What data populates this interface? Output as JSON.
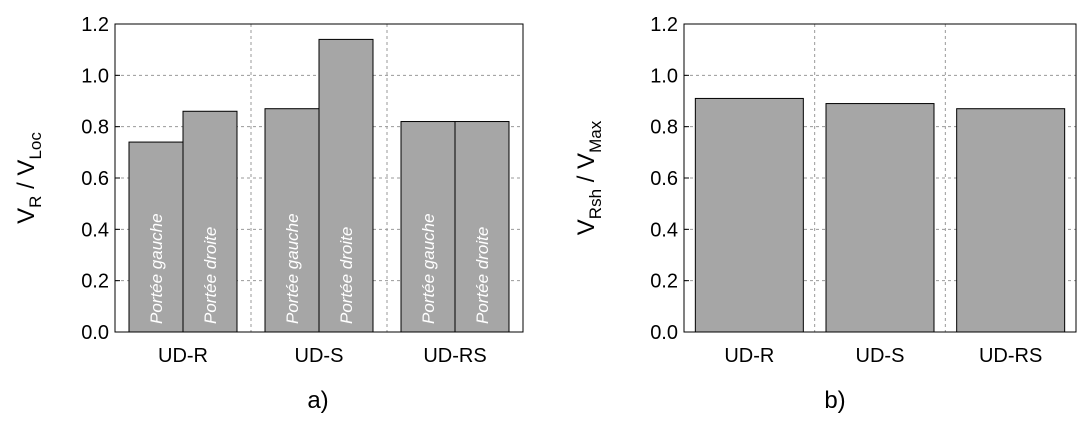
{
  "chart_data": [
    {
      "type": "bar",
      "panel_label": "a)",
      "ylabel": {
        "main1": "V",
        "sub1": "R",
        "sep": " / ",
        "main2": "V",
        "sub2": "Loc"
      },
      "ylim": [
        0,
        1.2
      ],
      "yticks": [
        "0.0",
        "0.2",
        "0.4",
        "0.6",
        "0.8",
        "1.0",
        "1.2"
      ],
      "grid": true,
      "categories": [
        "UD-R",
        "UD-S",
        "UD-RS"
      ],
      "series": [
        {
          "name": "Portée gauche",
          "values": [
            0.74,
            0.87,
            0.82
          ]
        },
        {
          "name": "Portée droite",
          "values": [
            0.86,
            1.14,
            0.82
          ]
        }
      ],
      "bar_color": "#a6a6a6"
    },
    {
      "type": "bar",
      "panel_label": "b)",
      "ylabel": {
        "main1": "V",
        "sub1": "Rsh",
        "sep": " / ",
        "main2": "V",
        "sub2": "Max"
      },
      "ylim": [
        0,
        1.2
      ],
      "yticks": [
        "0.0",
        "0.2",
        "0.4",
        "0.6",
        "0.8",
        "1.0",
        "1.2"
      ],
      "grid": true,
      "categories": [
        "UD-R",
        "UD-S",
        "UD-RS"
      ],
      "values": [
        0.91,
        0.89,
        0.87
      ],
      "bar_color": "#a6a6a6"
    }
  ]
}
